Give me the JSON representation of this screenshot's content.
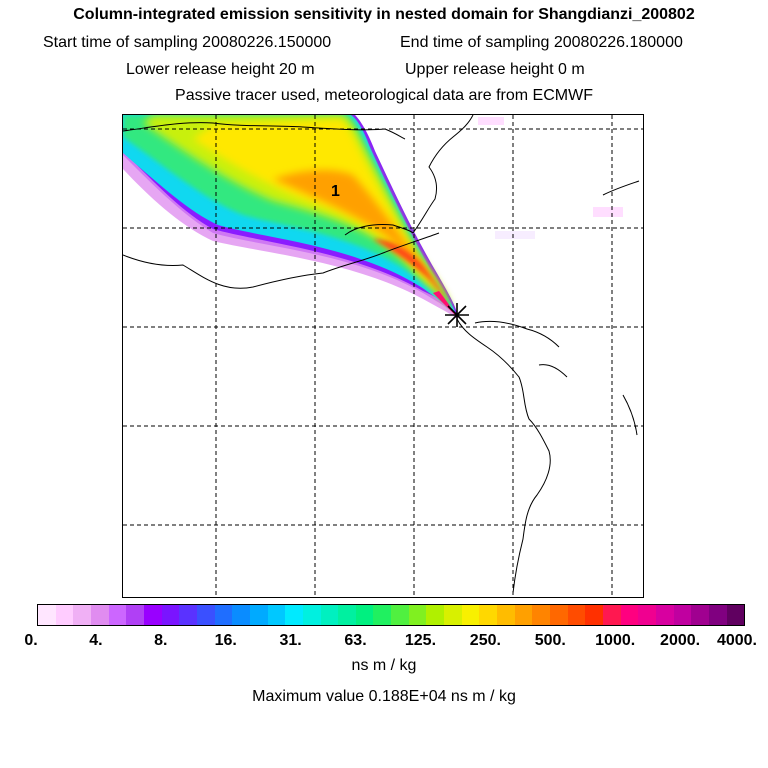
{
  "header": {
    "title": "Column-integrated emission sensitivity in nested domain for Shangdianzi_200802",
    "start_label": "Start time of sampling 20080226.150000",
    "end_label": "End time of sampling 20080226.180000",
    "lower_label": "Lower release height   20 m",
    "upper_label": "Upper release height    0 m",
    "info_line": "Passive tracer used, meteorological data are from ECMWF"
  },
  "map": {
    "plume_marker_label": "1",
    "release_site_icon": "asterisk-icon"
  },
  "colorbar": {
    "colors": [
      "#ffe6ff",
      "#ffccff",
      "#f0b0f5",
      "#e08cf0",
      "#cc66ff",
      "#b040f5",
      "#9900ff",
      "#7a14ff",
      "#5a32ff",
      "#3a50ff",
      "#1f6eff",
      "#0a8cff",
      "#00aaff",
      "#00c8ff",
      "#00eaff",
      "#00f0e0",
      "#00f0c0",
      "#00f0a0",
      "#00f080",
      "#20f060",
      "#50f040",
      "#80f020",
      "#b0f000",
      "#d8f000",
      "#f8f000",
      "#ffd800",
      "#ffbc00",
      "#ffa000",
      "#ff8400",
      "#ff6800",
      "#ff4c00",
      "#ff3000",
      "#ff1850",
      "#ff0080",
      "#f00090",
      "#d800a0",
      "#c000a0",
      "#a00090",
      "#800080",
      "#600060"
    ],
    "tick_labels": [
      "0.",
      "4.",
      "8.",
      "16.",
      "31.",
      "63.",
      "125.",
      "250.",
      "500.",
      "1000.",
      "2000.",
      "4000."
    ],
    "unit": "ns m / kg",
    "max_value": "Maximum value  0.188E+04 ns m / kg"
  }
}
